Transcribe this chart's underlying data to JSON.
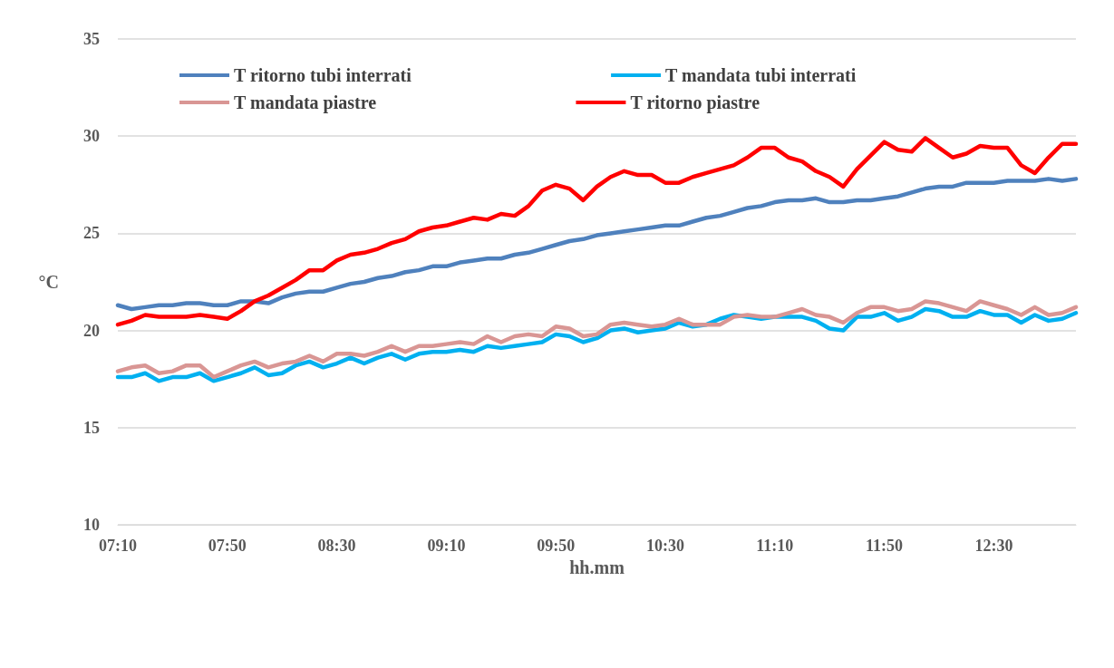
{
  "chart_data": {
    "type": "line",
    "xlabel": "hh.mm",
    "ylabel": "°C",
    "categories": [
      "07:10",
      null,
      null,
      null,
      null,
      null,
      null,
      null,
      "07:50",
      null,
      null,
      null,
      null,
      null,
      null,
      null,
      "08:30",
      null,
      null,
      null,
      null,
      null,
      null,
      null,
      "09:10",
      null,
      null,
      null,
      null,
      null,
      null,
      null,
      "09:50",
      null,
      null,
      null,
      null,
      null,
      null,
      null,
      "10:30",
      null,
      null,
      null,
      null,
      null,
      null,
      null,
      "11:10",
      null,
      null,
      null,
      null,
      null,
      null,
      null,
      "11:50",
      null,
      null,
      null,
      null,
      null,
      null,
      null,
      "12:30",
      null,
      null,
      null,
      null,
      null,
      null
    ],
    "series": [
      {
        "name": "T ritorno tubi interrati",
        "color": "#4f81bd",
        "values": [
          21.3,
          21.1,
          21.2,
          21.3,
          21.3,
          21.4,
          21.4,
          21.3,
          21.3,
          21.5,
          21.5,
          21.4,
          21.7,
          21.9,
          22.0,
          22.0,
          22.2,
          22.4,
          22.5,
          22.7,
          22.8,
          23.0,
          23.1,
          23.3,
          23.3,
          23.5,
          23.6,
          23.7,
          23.7,
          23.9,
          24.0,
          24.2,
          24.4,
          24.6,
          24.7,
          24.9,
          25.0,
          25.1,
          25.2,
          25.3,
          25.4,
          25.4,
          25.6,
          25.8,
          25.9,
          26.1,
          26.3,
          26.4,
          26.6,
          26.7,
          26.7,
          26.8,
          26.6,
          26.6,
          26.7,
          26.7,
          26.8,
          26.9,
          27.1,
          27.3,
          27.4,
          27.4,
          27.6,
          27.6,
          27.6,
          27.7,
          27.7,
          27.7,
          27.8,
          27.7,
          27.8
        ]
      },
      {
        "name": "T mandata tubi interrati",
        "color": "#00b0f0",
        "values": [
          17.6,
          17.6,
          17.8,
          17.4,
          17.6,
          17.6,
          17.8,
          17.4,
          17.6,
          17.8,
          18.1,
          17.7,
          17.8,
          18.2,
          18.4,
          18.1,
          18.3,
          18.6,
          18.3,
          18.6,
          18.8,
          18.5,
          18.8,
          18.9,
          18.9,
          19.0,
          18.9,
          19.2,
          19.1,
          19.2,
          19.3,
          19.4,
          19.8,
          19.7,
          19.4,
          19.6,
          20.0,
          20.1,
          19.9,
          20.0,
          20.1,
          20.4,
          20.2,
          20.3,
          20.6,
          20.8,
          20.7,
          20.6,
          20.7,
          20.7,
          20.7,
          20.5,
          20.1,
          20.0,
          20.7,
          20.7,
          20.9,
          20.5,
          20.7,
          21.1,
          21.0,
          20.7,
          20.7,
          21.0,
          20.8,
          20.8,
          20.4,
          20.8,
          20.5,
          20.6,
          20.9
        ]
      },
      {
        "name": "T mandata piastre",
        "color": "#d99694",
        "values": [
          17.9,
          18.1,
          18.2,
          17.8,
          17.9,
          18.2,
          18.2,
          17.6,
          17.9,
          18.2,
          18.4,
          18.1,
          18.3,
          18.4,
          18.7,
          18.4,
          18.8,
          18.8,
          18.7,
          18.9,
          19.2,
          18.9,
          19.2,
          19.2,
          19.3,
          19.4,
          19.3,
          19.7,
          19.4,
          19.7,
          19.8,
          19.7,
          20.2,
          20.1,
          19.7,
          19.8,
          20.3,
          20.4,
          20.3,
          20.2,
          20.3,
          20.6,
          20.3,
          20.3,
          20.3,
          20.7,
          20.8,
          20.7,
          20.7,
          20.9,
          21.1,
          20.8,
          20.7,
          20.4,
          20.9,
          21.2,
          21.2,
          21.0,
          21.1,
          21.5,
          21.4,
          21.2,
          21.0,
          21.5,
          21.3,
          21.1,
          20.8,
          21.2,
          20.8,
          20.9,
          21.2
        ]
      },
      {
        "name": "T ritorno piastre",
        "color": "#ff0000",
        "values": [
          20.3,
          20.5,
          20.8,
          20.7,
          20.7,
          20.7,
          20.8,
          20.7,
          20.6,
          21.0,
          21.5,
          21.8,
          22.2,
          22.6,
          23.1,
          23.1,
          23.6,
          23.9,
          24.0,
          24.2,
          24.5,
          24.7,
          25.1,
          25.3,
          25.4,
          25.6,
          25.8,
          25.7,
          26.0,
          25.9,
          26.4,
          27.2,
          27.5,
          27.3,
          26.7,
          27.4,
          27.9,
          28.2,
          28.0,
          28.0,
          27.6,
          27.6,
          27.9,
          28.1,
          28.3,
          28.5,
          28.9,
          29.4,
          29.4,
          28.9,
          28.7,
          28.2,
          27.9,
          27.4,
          28.3,
          29.0,
          29.7,
          29.3,
          29.2,
          29.9,
          29.4,
          28.9,
          29.1,
          29.5,
          29.4,
          29.4,
          28.5,
          28.1,
          28.9,
          29.6,
          29.6
        ]
      }
    ],
    "ylim": [
      10,
      35
    ],
    "yticks": [
      10,
      15,
      20,
      25,
      30,
      35
    ],
    "grid": "y",
    "legend": "top",
    "marker": "none",
    "line_style": "solid"
  }
}
